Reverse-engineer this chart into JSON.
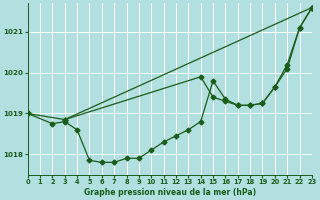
{
  "background_color": "#b2dfdf",
  "grid_color": "#ffffff",
  "line_color": "#1a5c1a",
  "title": "Graphe pression niveau de la mer (hPa)",
  "xlim": [
    0,
    23
  ],
  "ylim": [
    1017.5,
    1021.7
  ],
  "yticks": [
    1018,
    1019,
    1020,
    1021
  ],
  "xticks": [
    0,
    1,
    2,
    3,
    4,
    5,
    6,
    7,
    8,
    9,
    10,
    11,
    12,
    13,
    14,
    15,
    16,
    17,
    18,
    19,
    20,
    21,
    22,
    23
  ],
  "line1_x": [
    0,
    3,
    23
  ],
  "line1_y": [
    1019.0,
    1018.85,
    1021.6
  ],
  "line2_x": [
    0,
    2,
    3,
    4,
    5,
    6,
    7,
    8,
    9,
    10,
    11,
    12,
    13,
    14,
    15,
    16,
    17,
    18,
    19,
    20,
    21,
    22,
    23
  ],
  "line2_y": [
    1019.0,
    1018.75,
    1018.8,
    1018.6,
    1017.85,
    1017.8,
    1017.8,
    1017.9,
    1017.9,
    1018.1,
    1018.3,
    1018.45,
    1018.6,
    1018.8,
    1019.8,
    1019.35,
    1019.2,
    1019.2,
    1019.25,
    1019.65,
    1020.1,
    1021.1,
    1021.6
  ],
  "line3_x": [
    3,
    14,
    15,
    16,
    17,
    18,
    19,
    20,
    21,
    22,
    23
  ],
  "line3_y": [
    1018.85,
    1019.9,
    1019.4,
    1019.3,
    1019.2,
    1019.2,
    1019.25,
    1019.65,
    1020.2,
    1021.1,
    1021.6
  ],
  "marker_size": 2.5,
  "line_width": 0.9,
  "tick_fontsize": 4.8,
  "title_fontsize": 5.5
}
